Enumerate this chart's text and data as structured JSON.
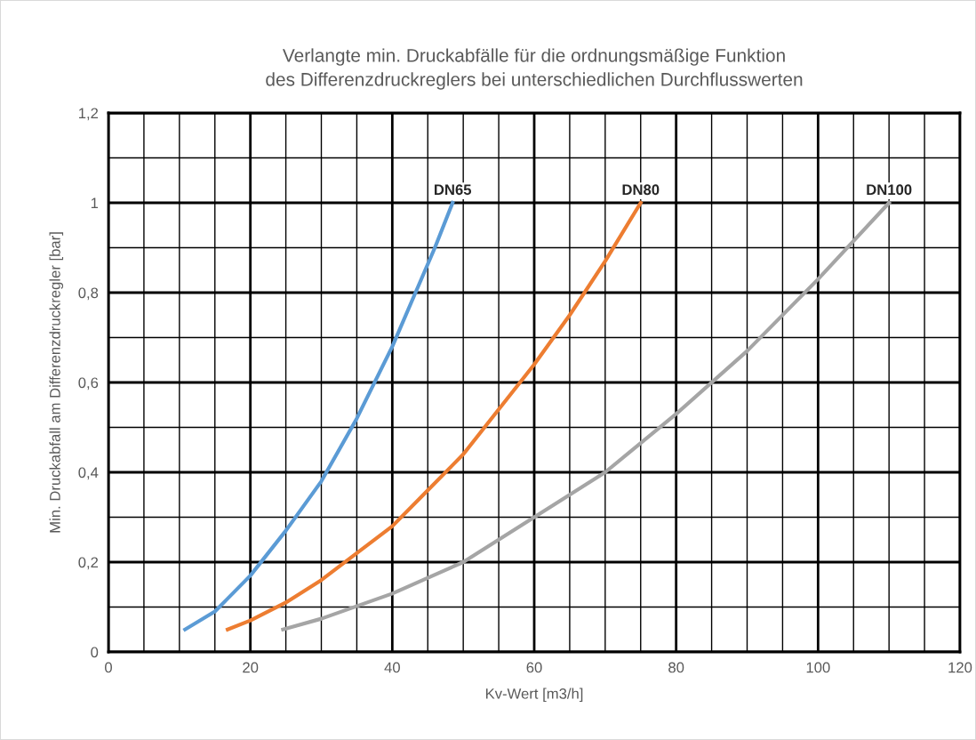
{
  "chart_data": {
    "type": "line",
    "title": "Verlangte min. Druckabfälle für die ordnungsmäßige Funktion\ndes Differenzdruckreglers bei unterschiedlichen Durchflusswerten",
    "xlabel": "Kv-Wert [m3/h]",
    "ylabel": "Min. Druckabfall am Differenzdruckregler [bar]",
    "series": [
      {
        "name": "DN65",
        "color": "#5b9bd5",
        "x": [
          10.8,
          15,
          20,
          25,
          30,
          35,
          40,
          43,
          46,
          48.5
        ],
        "values": [
          0.05,
          0.09,
          0.17,
          0.27,
          0.38,
          0.52,
          0.68,
          0.79,
          0.9,
          1.0
        ]
      },
      {
        "name": "DN80",
        "color": "#ed7d31",
        "x": [
          16.8,
          20,
          25,
          30,
          35,
          40,
          45,
          50,
          55,
          60,
          65,
          70,
          75
        ],
        "values": [
          0.05,
          0.07,
          0.11,
          0.16,
          0.22,
          0.28,
          0.36,
          0.44,
          0.54,
          0.64,
          0.75,
          0.87,
          1.0
        ]
      },
      {
        "name": "DN100",
        "color": "#a5a5a5",
        "x": [
          24.6,
          30,
          40,
          50,
          60,
          70,
          80,
          90,
          100,
          110
        ],
        "values": [
          0.05,
          0.074,
          0.13,
          0.2,
          0.3,
          0.4,
          0.53,
          0.67,
          0.83,
          1.0
        ]
      }
    ],
    "xlim": [
      0,
      120
    ],
    "ylim": [
      0,
      1.2
    ],
    "xticks": [
      0,
      {
        "value": 5,
        "label": null
      },
      {
        "value": 10,
        "label": null
      },
      {
        "value": 15,
        "label": null
      },
      20,
      {
        "value": 25,
        "label": null
      },
      {
        "value": 30,
        "label": null
      },
      {
        "value": 35,
        "label": null
      },
      40,
      {
        "value": 45,
        "label": null
      },
      {
        "value": 50,
        "label": null
      },
      {
        "value": 55,
        "label": null
      },
      60,
      {
        "value": 65,
        "label": null
      },
      {
        "value": 70,
        "label": null
      },
      {
        "value": 75,
        "label": null
      },
      80,
      {
        "value": 85,
        "label": null
      },
      {
        "value": 90,
        "label": null
      },
      {
        "value": 95,
        "label": null
      },
      100,
      {
        "value": 105,
        "label": null
      },
      {
        "value": 110,
        "label": null
      },
      {
        "value": 115,
        "label": null
      },
      120
    ],
    "yticks": [
      {
        "value": 0,
        "label": "0"
      },
      {
        "value": 0.1,
        "label": null
      },
      {
        "value": 0.2,
        "label": "0,2"
      },
      {
        "value": 0.3,
        "label": null
      },
      {
        "value": 0.4,
        "label": "0,4"
      },
      {
        "value": 0.5,
        "label": null
      },
      {
        "value": 0.6,
        "label": "0,6"
      },
      {
        "value": 0.7,
        "label": null
      },
      {
        "value": 0.8,
        "label": "0,8"
      },
      {
        "value": 0.9,
        "label": null
      },
      {
        "value": 1,
        "label": "1"
      },
      {
        "value": 1.1,
        "label": null
      },
      {
        "value": 1.2,
        "label": "1,2"
      }
    ],
    "grid": true,
    "legend": false,
    "marker": "none",
    "line_style": "solid"
  }
}
